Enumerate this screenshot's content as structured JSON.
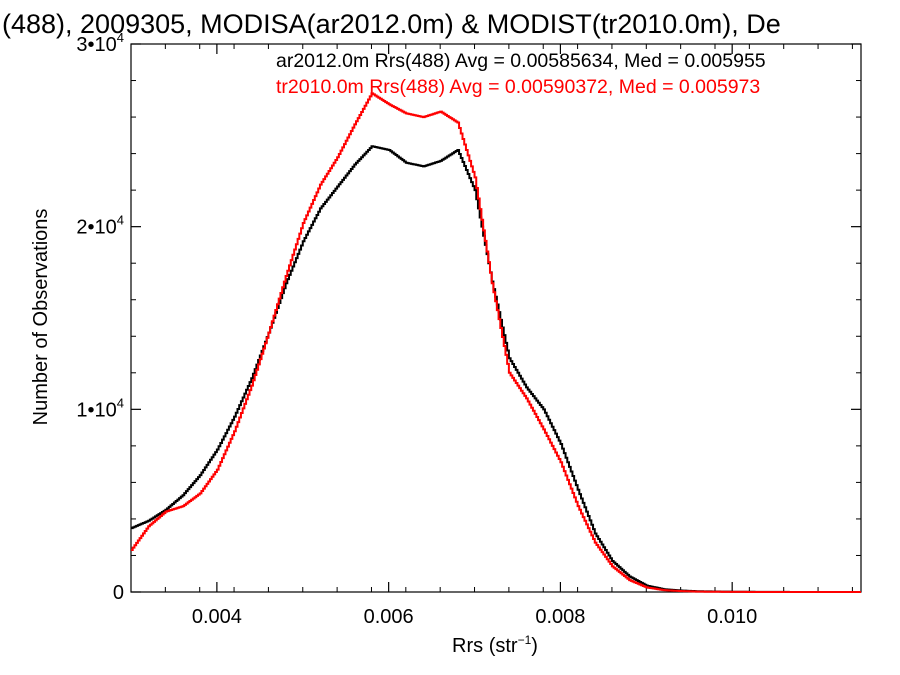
{
  "chart_data": {
    "type": "line",
    "style": "step histogram",
    "title": "(488), 2009305, MODISA(ar2012.0m) & MODIST(tr2010.0m), De",
    "xlabel": "Rrs (str",
    "xlabel_sup": "−1",
    "xlabel_close": ")",
    "ylabel": "Number of Observations",
    "xlim": [
      0.003,
      0.0115
    ],
    "ylim": [
      0,
      30000
    ],
    "grid": false,
    "x_ticks": [
      {
        "value": 0.004,
        "label": "0.004"
      },
      {
        "value": 0.006,
        "label": "0.006"
      },
      {
        "value": 0.008,
        "label": "0.008"
      },
      {
        "value": 0.01,
        "label": "0.010"
      }
    ],
    "y_ticks": [
      {
        "value": 0,
        "mant": "0",
        "exp": ""
      },
      {
        "value": 10000,
        "mant": "1•10",
        "exp": "4"
      },
      {
        "value": 20000,
        "mant": "2•10",
        "exp": "4"
      },
      {
        "value": 30000,
        "mant": "3•10",
        "exp": "4"
      }
    ],
    "legend_placement": "top-right",
    "series": [
      {
        "name": "ar2012.0m Rrs(488) Avg = 0.00585634, Med = 0.005955",
        "color": "#000000",
        "x": [
          0.003,
          0.0032,
          0.0034,
          0.0036,
          0.0038,
          0.004,
          0.0042,
          0.0044,
          0.0046,
          0.0048,
          0.005,
          0.0052,
          0.0054,
          0.0056,
          0.0058,
          0.006,
          0.0062,
          0.0064,
          0.0066,
          0.0068,
          0.007,
          0.0072,
          0.0074,
          0.0076,
          0.0078,
          0.008,
          0.0082,
          0.0084,
          0.0086,
          0.0088,
          0.009,
          0.0092,
          0.0094,
          0.0096,
          0.01,
          0.0105,
          0.011,
          0.0115
        ],
        "values": [
          3500,
          3900,
          4500,
          5300,
          6400,
          7800,
          9600,
          11700,
          14200,
          16900,
          19200,
          21000,
          22200,
          23400,
          24400,
          24200,
          23500,
          23300,
          23600,
          24200,
          22000,
          17000,
          12800,
          11200,
          10000,
          8100,
          5600,
          3200,
          1700,
          850,
          350,
          150,
          80,
          40,
          15,
          5,
          0,
          0
        ]
      },
      {
        "name": "tr2010.0m Rrs(488) Avg = 0.00590372, Med = 0.005973",
        "color": "#ff0000",
        "x": [
          0.003,
          0.0032,
          0.0034,
          0.0036,
          0.0038,
          0.004,
          0.0042,
          0.0044,
          0.0046,
          0.0048,
          0.005,
          0.0052,
          0.0054,
          0.0056,
          0.0058,
          0.006,
          0.0062,
          0.0064,
          0.0066,
          0.0068,
          0.007,
          0.0072,
          0.0074,
          0.0076,
          0.0078,
          0.008,
          0.0082,
          0.0084,
          0.0086,
          0.0088,
          0.009,
          0.0092,
          0.0094,
          0.0096,
          0.01,
          0.0105,
          0.011,
          0.0115
        ],
        "values": [
          2300,
          3600,
          4400,
          4700,
          5400,
          6700,
          8800,
          11300,
          14200,
          17300,
          20200,
          22300,
          23800,
          25600,
          27300,
          26700,
          26200,
          26000,
          26300,
          25700,
          22700,
          16900,
          12000,
          10600,
          8900,
          7100,
          4700,
          2700,
          1400,
          650,
          250,
          100,
          50,
          20,
          5,
          0,
          0,
          0
        ]
      }
    ]
  }
}
